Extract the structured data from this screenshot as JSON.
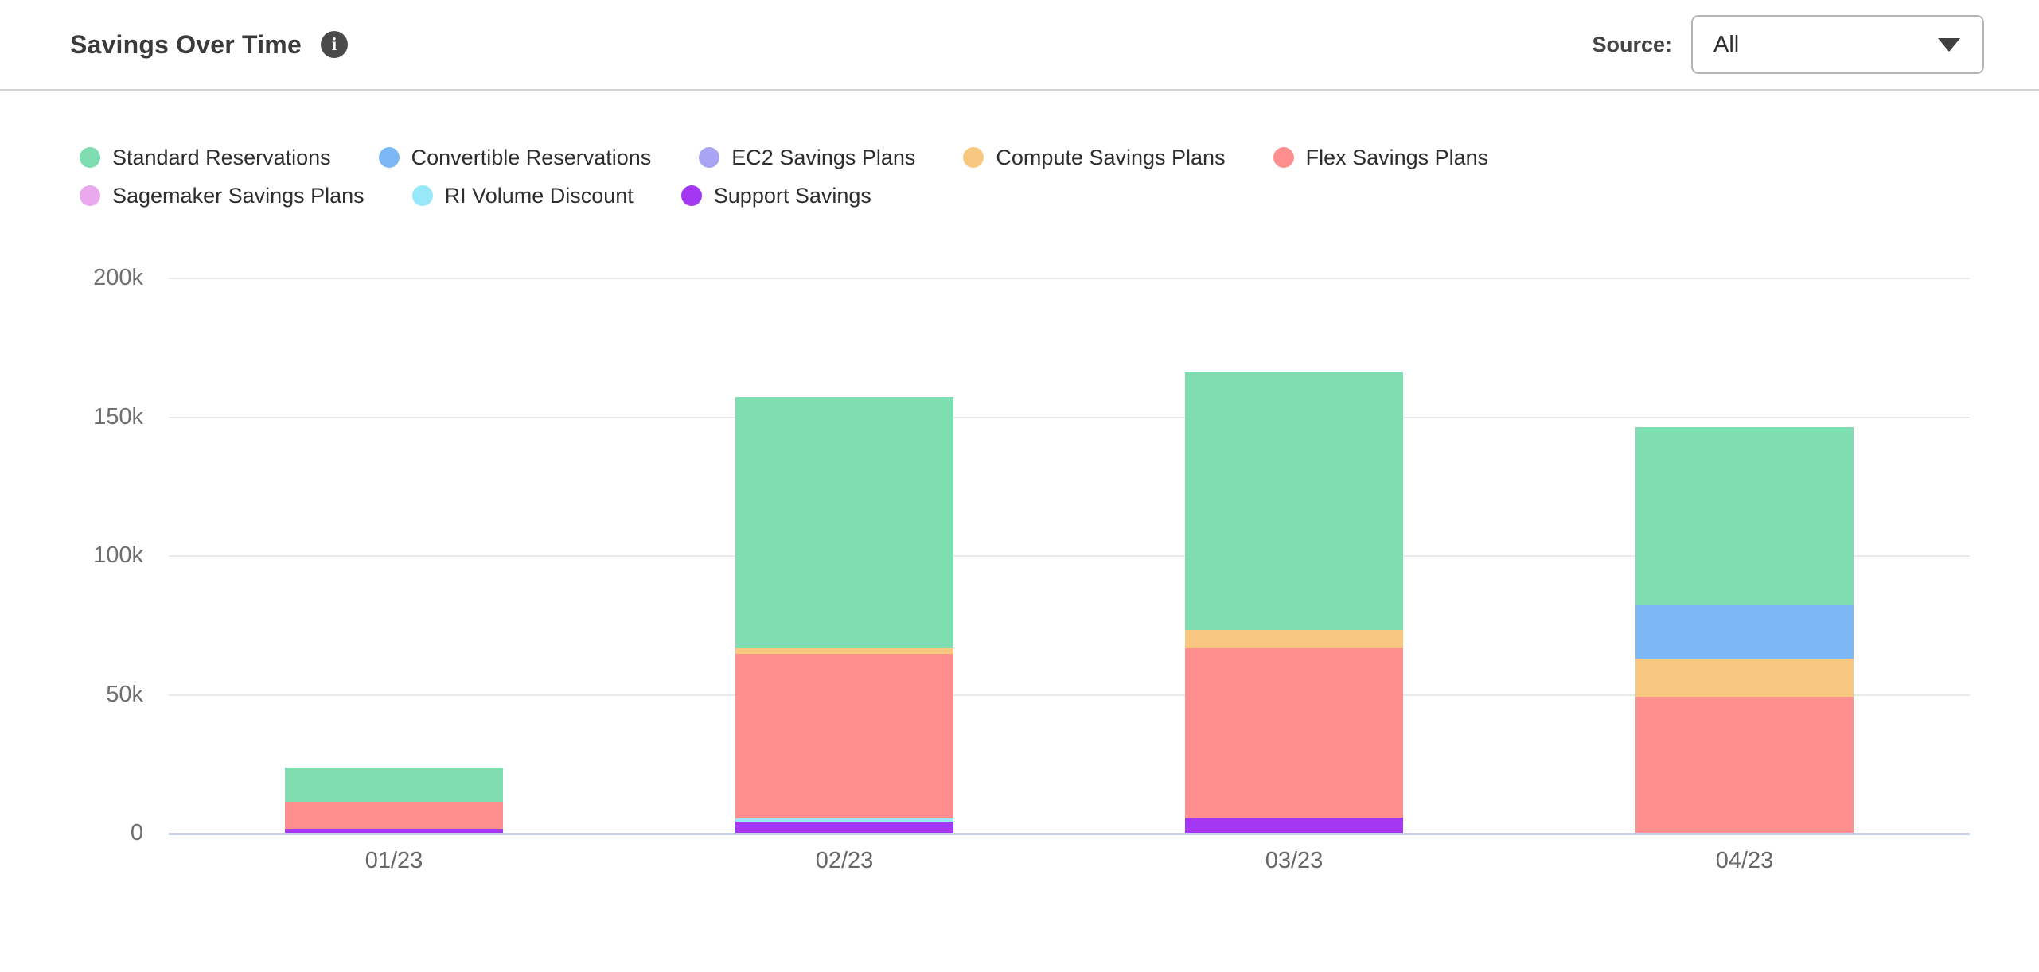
{
  "header": {
    "title": "Savings Over Time",
    "info_icon": "i",
    "source_label": "Source:",
    "source_value": "All"
  },
  "chart_data": {
    "type": "bar",
    "stacked": true,
    "title": "Savings Over Time",
    "value_unit": "thousands (k)",
    "categories": [
      "01/23",
      "02/23",
      "03/23",
      "04/23"
    ],
    "series": [
      {
        "name": "Standard Reservations",
        "color": "#7EDEB1",
        "values": [
          12.4,
          90.5,
          93,
          64
        ]
      },
      {
        "name": "Convertible Reservations",
        "color": "#7DB8F6",
        "values": [
          0,
          0,
          0,
          19.5
        ]
      },
      {
        "name": "EC2 Savings Plans",
        "color": "#A9A4F3",
        "values": [
          0,
          0,
          0,
          0
        ]
      },
      {
        "name": "Compute Savings Plans",
        "color": "#F8C880",
        "values": [
          0,
          2,
          6.5,
          13.5
        ]
      },
      {
        "name": "Flex Savings Plans",
        "color": "#FF8F8F",
        "values": [
          9.8,
          59.5,
          61,
          49
        ]
      },
      {
        "name": "Sagemaker Savings Plans",
        "color": "#E9A9EC",
        "values": [
          0,
          0,
          0,
          0
        ]
      },
      {
        "name": "RI Volume Discount",
        "color": "#98E8F9",
        "values": [
          0,
          1,
          0,
          0
        ]
      },
      {
        "name": "Support Savings",
        "color": "#A438F2",
        "values": [
          1.4,
          4,
          5.5,
          0
        ]
      }
    ],
    "stack_order_bottom_to_top": [
      "Support Savings",
      "RI Volume Discount",
      "Sagemaker Savings Plans",
      "Flex Savings Plans",
      "Compute Savings Plans",
      "EC2 Savings Plans",
      "Convertible Reservations",
      "Standard Reservations"
    ],
    "totals": [
      23.6,
      157.0,
      166.0,
      146.0
    ],
    "yticks": [
      "200k",
      "150k",
      "100k",
      "50k",
      "0"
    ],
    "ytick_values": [
      200,
      150,
      100,
      50,
      0
    ],
    "ylim": [
      0,
      200
    ],
    "grid": "horizontal",
    "legend_position": "top-left",
    "colors": {
      "gridline": "#eaeaea",
      "baseline": "#c9cfe9",
      "axis_text": "#6f6f6f"
    }
  }
}
